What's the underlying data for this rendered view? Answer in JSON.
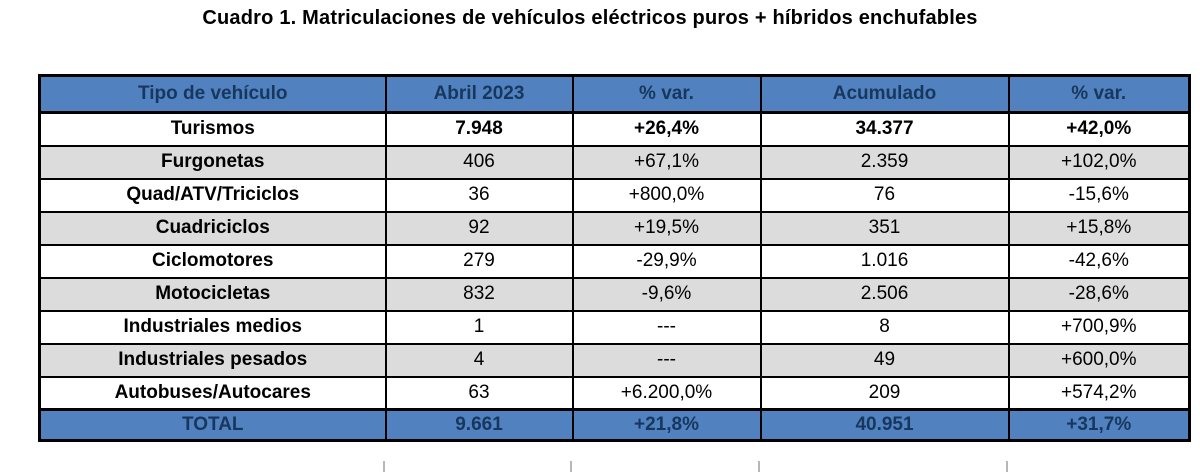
{
  "title": "Cuadro 1. Matriculaciones de vehículos eléctricos puros + híbridos enchufables",
  "table": {
    "columns": [
      "Tipo de vehículo",
      "Abril 2023",
      "% var.",
      "Acumulado",
      "% var."
    ],
    "rows": [
      {
        "cells": [
          "Turismos",
          "7.948",
          "+26,4%",
          "34.377",
          "+42,0%"
        ],
        "emphasis": true,
        "shaded": false
      },
      {
        "cells": [
          "Furgonetas",
          "406",
          "+67,1%",
          "2.359",
          "+102,0%"
        ],
        "emphasis": false,
        "shaded": true
      },
      {
        "cells": [
          "Quad/ATV/Triciclos",
          "36",
          "+800,0%",
          "76",
          "-15,6%"
        ],
        "emphasis": false,
        "shaded": false
      },
      {
        "cells": [
          "Cuadriciclos",
          "92",
          "+19,5%",
          "351",
          "+15,8%"
        ],
        "emphasis": false,
        "shaded": true
      },
      {
        "cells": [
          "Ciclomotores",
          "279",
          "-29,9%",
          "1.016",
          "-42,6%"
        ],
        "emphasis": false,
        "shaded": false
      },
      {
        "cells": [
          "Motocicletas",
          "832",
          "-9,6%",
          "2.506",
          "-28,6%"
        ],
        "emphasis": false,
        "shaded": true
      },
      {
        "cells": [
          "Industriales medios",
          "1",
          "---",
          "8",
          "+700,9%"
        ],
        "emphasis": false,
        "shaded": false
      },
      {
        "cells": [
          "Industriales pesados",
          "4",
          "---",
          "49",
          "+600,0%"
        ],
        "emphasis": false,
        "shaded": true
      },
      {
        "cells": [
          "Autobuses/Autocares",
          "63",
          "+6.200,0%",
          "209",
          "+574,2%"
        ],
        "emphasis": false,
        "shaded": false
      }
    ],
    "total_row": {
      "cells": [
        "TOTAL",
        "9.661",
        "+21,8%",
        "40.951",
        "+31,7%"
      ]
    }
  },
  "colors": {
    "header_bg": "#5182BF",
    "header_text": "#17375E",
    "row_alt_bg": "#DCDCDC",
    "border": "#000000"
  }
}
